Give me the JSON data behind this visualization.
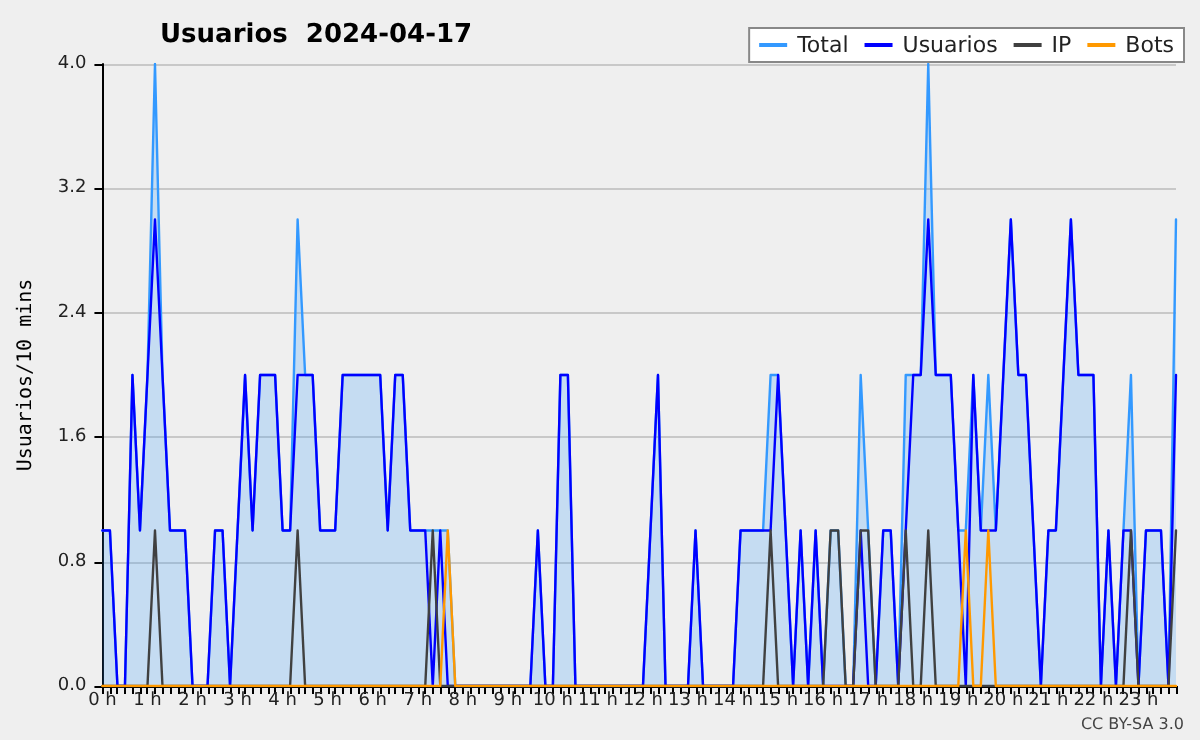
{
  "chart_data": {
    "type": "line",
    "title": "Usuarios  2024-04-17",
    "ylabel": "Usuarios/10 mins",
    "annotations": [
      "CC BY-SA 3.0"
    ],
    "categories": [
      "0 h",
      null,
      null,
      null,
      null,
      null,
      "1 h",
      null,
      null,
      null,
      null,
      null,
      "2 h",
      null,
      null,
      null,
      null,
      null,
      "3 h",
      null,
      null,
      null,
      null,
      null,
      "4 h",
      null,
      null,
      null,
      null,
      null,
      "5 h",
      null,
      null,
      null,
      null,
      null,
      "6 h",
      null,
      null,
      null,
      null,
      null,
      "7 h",
      null,
      null,
      null,
      null,
      null,
      "8 h",
      null,
      null,
      null,
      null,
      null,
      "9 h",
      null,
      null,
      null,
      null,
      null,
      "10 h",
      null,
      null,
      null,
      null,
      null,
      "11 h",
      null,
      null,
      null,
      null,
      null,
      "12 h",
      null,
      null,
      null,
      null,
      null,
      "13 h",
      null,
      null,
      null,
      null,
      null,
      "14 h",
      null,
      null,
      null,
      null,
      null,
      "15 h",
      null,
      null,
      null,
      null,
      null,
      "16 h",
      null,
      null,
      null,
      null,
      null,
      "17 h",
      null,
      null,
      null,
      null,
      null,
      "18 h",
      null,
      null,
      null,
      null,
      null,
      "19 h",
      null,
      null,
      null,
      null,
      null,
      "20 h",
      null,
      null,
      null,
      null,
      null,
      "21 h",
      null,
      null,
      null,
      null,
      null,
      "22 h",
      null,
      null,
      null,
      null,
      null,
      "23 h",
      null,
      null,
      null,
      null,
      null
    ],
    "series": [
      {
        "name": "Total",
        "type": "area",
        "color": "#3399ff",
        "values": [
          1,
          1,
          0,
          0,
          2,
          1,
          2,
          4,
          2,
          1,
          1,
          1,
          0,
          0,
          0,
          1,
          1,
          0,
          1,
          2,
          1,
          2,
          2,
          2,
          1,
          1,
          3,
          2,
          2,
          1,
          1,
          1,
          2,
          2,
          2,
          2,
          2,
          2,
          1,
          2,
          2,
          1,
          1,
          1,
          1,
          1,
          1,
          0,
          0,
          0,
          0,
          0,
          0,
          0,
          0,
          0,
          0,
          0,
          1,
          0,
          0,
          2,
          2,
          0,
          0,
          0,
          0,
          0,
          0,
          0,
          0,
          0,
          0,
          1,
          2,
          0,
          0,
          0,
          0,
          1,
          0,
          0,
          0,
          0,
          0,
          1,
          1,
          1,
          1,
          2,
          2,
          1,
          0,
          1,
          0,
          1,
          0,
          1,
          1,
          0,
          0,
          2,
          1,
          0,
          1,
          1,
          0,
          2,
          2,
          2,
          4,
          2,
          2,
          2,
          1,
          1,
          2,
          1,
          2,
          1,
          2,
          3,
          2,
          2,
          1,
          0,
          1,
          1,
          2,
          3,
          2,
          2,
          2,
          0,
          1,
          0,
          1,
          2,
          0,
          1,
          1,
          1,
          0,
          3
        ]
      },
      {
        "name": "Usuarios",
        "color": "#0000ff",
        "values": [
          1,
          1,
          0,
          0,
          2,
          1,
          2,
          3,
          2,
          1,
          1,
          1,
          0,
          0,
          0,
          1,
          1,
          0,
          1,
          2,
          1,
          2,
          2,
          2,
          1,
          1,
          2,
          2,
          2,
          1,
          1,
          1,
          2,
          2,
          2,
          2,
          2,
          2,
          1,
          2,
          2,
          1,
          1,
          1,
          0,
          1,
          0,
          0,
          0,
          0,
          0,
          0,
          0,
          0,
          0,
          0,
          0,
          0,
          1,
          0,
          0,
          2,
          2,
          0,
          0,
          0,
          0,
          0,
          0,
          0,
          0,
          0,
          0,
          1,
          2,
          0,
          0,
          0,
          0,
          1,
          0,
          0,
          0,
          0,
          0,
          1,
          1,
          1,
          1,
          1,
          2,
          1,
          0,
          1,
          0,
          1,
          0,
          0,
          0,
          0,
          0,
          1,
          0,
          0,
          1,
          1,
          0,
          1,
          2,
          2,
          3,
          2,
          2,
          2,
          1,
          0,
          2,
          1,
          1,
          1,
          2,
          3,
          2,
          2,
          1,
          0,
          1,
          1,
          2,
          3,
          2,
          2,
          2,
          0,
          1,
          0,
          1,
          1,
          0,
          1,
          1,
          1,
          0,
          2
        ]
      },
      {
        "name": "IP",
        "color": "#404040",
        "values": [
          0,
          0,
          0,
          0,
          0,
          0,
          0,
          1,
          0,
          0,
          0,
          0,
          0,
          0,
          0,
          0,
          0,
          0,
          0,
          0,
          0,
          0,
          0,
          0,
          0,
          0,
          1,
          0,
          0,
          0,
          0,
          0,
          0,
          0,
          0,
          0,
          0,
          0,
          0,
          0,
          0,
          0,
          0,
          0,
          1,
          0,
          0,
          0,
          0,
          0,
          0,
          0,
          0,
          0,
          0,
          0,
          0,
          0,
          0,
          0,
          0,
          0,
          0,
          0,
          0,
          0,
          0,
          0,
          0,
          0,
          0,
          0,
          0,
          0,
          0,
          0,
          0,
          0,
          0,
          0,
          0,
          0,
          0,
          0,
          0,
          0,
          0,
          0,
          0,
          1,
          0,
          0,
          0,
          0,
          0,
          0,
          0,
          1,
          1,
          0,
          0,
          1,
          1,
          0,
          0,
          0,
          0,
          1,
          0,
          0,
          1,
          0,
          0,
          0,
          0,
          0,
          0,
          0,
          0,
          0,
          0,
          0,
          0,
          0,
          0,
          0,
          0,
          0,
          0,
          0,
          0,
          0,
          0,
          0,
          0,
          0,
          0,
          1,
          0,
          0,
          0,
          0,
          0,
          1
        ]
      },
      {
        "name": "Bots",
        "color": "#ff9900",
        "values": [
          0,
          0,
          0,
          0,
          0,
          0,
          0,
          0,
          0,
          0,
          0,
          0,
          0,
          0,
          0,
          0,
          0,
          0,
          0,
          0,
          0,
          0,
          0,
          0,
          0,
          0,
          0,
          0,
          0,
          0,
          0,
          0,
          0,
          0,
          0,
          0,
          0,
          0,
          0,
          0,
          0,
          0,
          0,
          0,
          0,
          0,
          1,
          0,
          0,
          0,
          0,
          0,
          0,
          0,
          0,
          0,
          0,
          0,
          0,
          0,
          0,
          0,
          0,
          0,
          0,
          0,
          0,
          0,
          0,
          0,
          0,
          0,
          0,
          0,
          0,
          0,
          0,
          0,
          0,
          0,
          0,
          0,
          0,
          0,
          0,
          0,
          0,
          0,
          0,
          0,
          0,
          0,
          0,
          0,
          0,
          0,
          0,
          0,
          0,
          0,
          0,
          0,
          0,
          0,
          0,
          0,
          0,
          0,
          0,
          0,
          0,
          0,
          0,
          0,
          0,
          1,
          0,
          0,
          1,
          0,
          0,
          0,
          0,
          0,
          0,
          0,
          0,
          0,
          0,
          0,
          0,
          0,
          0,
          0,
          0,
          0,
          0,
          0,
          0,
          0,
          0,
          0,
          0,
          0
        ]
      }
    ],
    "ylim": [
      0,
      4
    ],
    "yticks": [
      {
        "value": 0,
        "label": "0.0"
      },
      {
        "value": 0.8,
        "label": "0.8"
      },
      {
        "value": 1.6,
        "label": "1.6"
      },
      {
        "value": 2.4,
        "label": "2.4"
      },
      {
        "value": 3.2,
        "label": "3.2"
      },
      {
        "value": 4,
        "label": "4.0"
      }
    ],
    "grid": "y",
    "legend": "top right",
    "marker": "none"
  }
}
